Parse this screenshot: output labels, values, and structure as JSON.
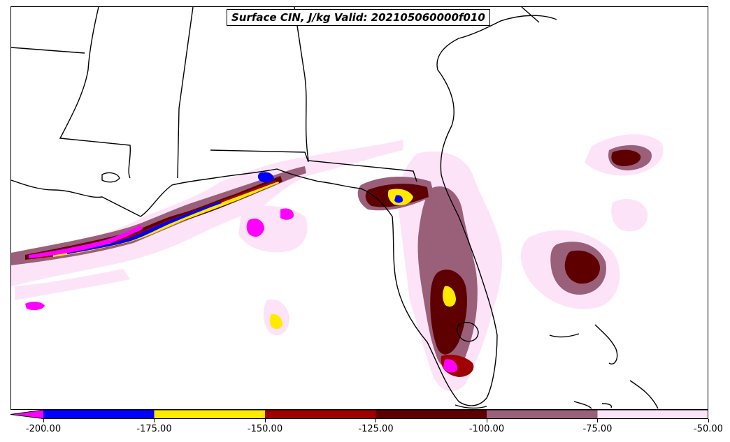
{
  "title": "Surface CIN, J/kg Valid: 202105060000f010",
  "legend": {
    "ticks": [
      "-200.00",
      "-175.00",
      "-150.00",
      "-125.00",
      "-100.00",
      "-75.00",
      "-50.00"
    ],
    "bins": [
      {
        "range": [
          -200,
          -175
        ],
        "color": "#0000ff"
      },
      {
        "range": [
          -175,
          -150
        ],
        "color": "#ffea00"
      },
      {
        "range": [
          -150,
          -125
        ],
        "color": "#a00000"
      },
      {
        "range": [
          -125,
          -100
        ],
        "color": "#5e0000"
      },
      {
        "range": [
          -100,
          -75
        ],
        "color": "#9a607a"
      },
      {
        "range": [
          -75,
          -50
        ],
        "color": "#fde3f8"
      }
    ],
    "extend_min_color": "#ff00ff"
  },
  "colors": {
    "outline": "#000000",
    "background": "#ffffff"
  }
}
